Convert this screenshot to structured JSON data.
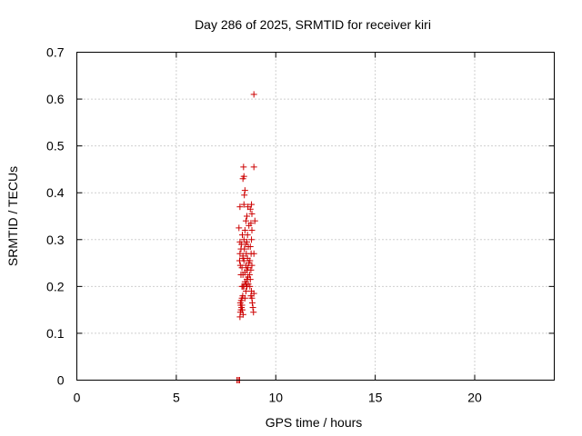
{
  "chart_data": {
    "type": "scatter",
    "title": "Day 286 of 2025, SRMTID for receiver kiri",
    "xlabel": "GPS time / hours",
    "ylabel": "SRMTID / TECUs",
    "xlim": [
      0,
      24
    ],
    "ylim": [
      0,
      0.7
    ],
    "xticks": [
      "0",
      "5",
      "10",
      "15",
      "20"
    ],
    "yticks": [
      "0",
      "0.1",
      "0.2",
      "0.3",
      "0.4",
      "0.5",
      "0.6",
      "0.7"
    ],
    "grid": true,
    "marker": "+",
    "color": "#cc0000",
    "points": [
      [
        8.05,
        0.0
      ],
      [
        8.12,
        0.0
      ],
      [
        8.18,
        0.0
      ],
      [
        8.2,
        0.135
      ],
      [
        8.22,
        0.145
      ],
      [
        8.25,
        0.15
      ],
      [
        8.28,
        0.155
      ],
      [
        8.3,
        0.16
      ],
      [
        8.22,
        0.165
      ],
      [
        8.26,
        0.17
      ],
      [
        8.3,
        0.175
      ],
      [
        8.34,
        0.18
      ],
      [
        8.24,
        0.16
      ],
      [
        8.32,
        0.15
      ],
      [
        8.36,
        0.14
      ],
      [
        8.3,
        0.2
      ],
      [
        8.4,
        0.2
      ],
      [
        8.5,
        0.205
      ],
      [
        8.45,
        0.21
      ],
      [
        8.55,
        0.215
      ],
      [
        8.35,
        0.225
      ],
      [
        8.45,
        0.23
      ],
      [
        8.55,
        0.235
      ],
      [
        8.6,
        0.24
      ],
      [
        8.5,
        0.245
      ],
      [
        8.65,
        0.25
      ],
      [
        8.4,
        0.255
      ],
      [
        8.58,
        0.26
      ],
      [
        8.35,
        0.265
      ],
      [
        8.52,
        0.27
      ],
      [
        8.42,
        0.28
      ],
      [
        8.62,
        0.285
      ],
      [
        8.48,
        0.29
      ],
      [
        8.55,
        0.295
      ],
      [
        8.4,
        0.3
      ],
      [
        8.25,
        0.28
      ],
      [
        8.2,
        0.27
      ],
      [
        8.28,
        0.29
      ],
      [
        8.32,
        0.31
      ],
      [
        8.45,
        0.32
      ],
      [
        8.5,
        0.34
      ],
      [
        8.55,
        0.35
      ],
      [
        8.6,
        0.37
      ],
      [
        8.4,
        0.375
      ],
      [
        8.42,
        0.395
      ],
      [
        8.45,
        0.405
      ],
      [
        8.35,
        0.43
      ],
      [
        8.4,
        0.435
      ],
      [
        8.38,
        0.455
      ],
      [
        8.2,
        0.37
      ],
      [
        8.15,
        0.325
      ],
      [
        8.2,
        0.295
      ],
      [
        8.18,
        0.255
      ],
      [
        8.22,
        0.245
      ],
      [
        8.25,
        0.225
      ],
      [
        8.75,
        0.18
      ],
      [
        8.8,
        0.175
      ],
      [
        8.82,
        0.165
      ],
      [
        8.85,
        0.155
      ],
      [
        8.88,
        0.145
      ],
      [
        8.78,
        0.19
      ],
      [
        8.9,
        0.185
      ],
      [
        8.7,
        0.2
      ],
      [
        8.72,
        0.215
      ],
      [
        8.68,
        0.225
      ],
      [
        8.75,
        0.235
      ],
      [
        8.8,
        0.245
      ],
      [
        8.7,
        0.255
      ],
      [
        8.76,
        0.27
      ],
      [
        8.9,
        0.27
      ],
      [
        8.72,
        0.285
      ],
      [
        8.78,
        0.3
      ],
      [
        8.8,
        0.32
      ],
      [
        8.75,
        0.335
      ],
      [
        8.95,
        0.34
      ],
      [
        8.8,
        0.355
      ],
      [
        8.72,
        0.365
      ],
      [
        8.78,
        0.375
      ],
      [
        8.9,
        0.455
      ],
      [
        8.9,
        0.61
      ],
      [
        8.55,
        0.2
      ],
      [
        8.6,
        0.22
      ],
      [
        8.62,
        0.205
      ],
      [
        8.5,
        0.19
      ],
      [
        8.45,
        0.175
      ],
      [
        8.58,
        0.31
      ],
      [
        8.65,
        0.33
      ],
      [
        8.35,
        0.2
      ],
      [
        8.3,
        0.24
      ],
      [
        8.35,
        0.26
      ]
    ]
  }
}
